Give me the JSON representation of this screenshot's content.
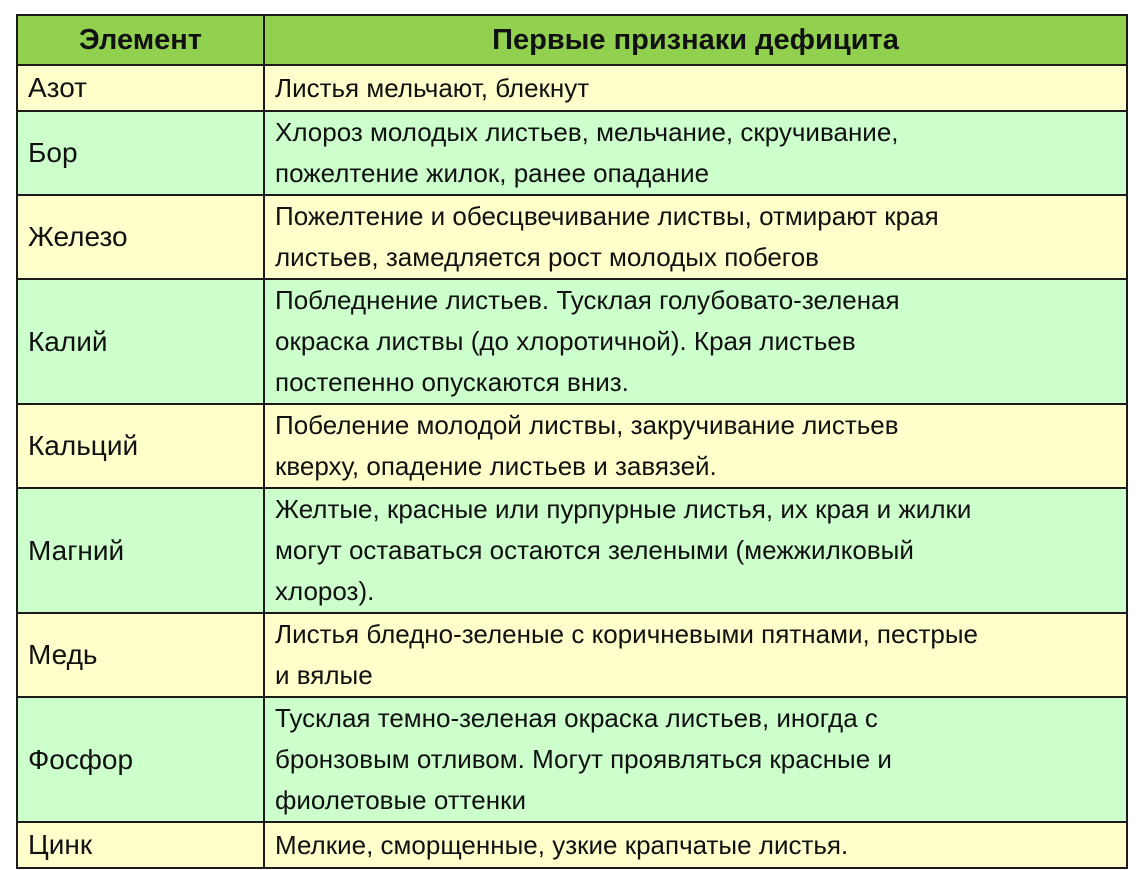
{
  "colors": {
    "header": "#92d050",
    "row_odd": "#ffffcc",
    "row_even": "#ccffcc",
    "border": "#1a1a1a"
  },
  "table": {
    "headers": [
      "Элемент",
      "Первые признаки дефицита"
    ],
    "rows": [
      {
        "element": "Азот",
        "lines": [
          "Листья мельчают, блекнут"
        ]
      },
      {
        "element": "Бор",
        "lines": [
          "Хлороз молодых листьев, мельчание, скручивание,",
          "пожелтение жилок, ранее опадание"
        ]
      },
      {
        "element": "Железо",
        "lines": [
          "Пожелтение и обесцвечивание листвы, отмирают края",
          "листьев, замедляется рост молодых побегов"
        ]
      },
      {
        "element": "Калий",
        "lines": [
          "Побледнение листьев. Тусклая голубовато-зеленая",
          "окраска листвы (до хлоротичной). Края листьев",
          "постепенно опускаются вниз."
        ]
      },
      {
        "element": "Кальций",
        "lines": [
          "Побеление молодой листвы, закручивание листьев",
          "кверху, опадение листьев и завязей."
        ]
      },
      {
        "element": "Магний",
        "lines": [
          "Желтые, красные или пурпурные листья, их края и жилки",
          "могут оставаться остаются зелеными (межжилковый",
          "хлороз)."
        ]
      },
      {
        "element": "Медь",
        "lines": [
          "Листья бледно-зеленые с коричневыми пятнами, пестрые",
          "и вялые"
        ]
      },
      {
        "element": "Фосфор",
        "lines": [
          "Тусклая темно-зеленая окраска листьев, иногда с",
          "бронзовым отливом. Могут проявляться красные и",
          "фиолетовые оттенки"
        ]
      },
      {
        "element": "Цинк",
        "lines": [
          "Мелкие, сморщенные, узкие крапчатые листья."
        ]
      }
    ]
  }
}
